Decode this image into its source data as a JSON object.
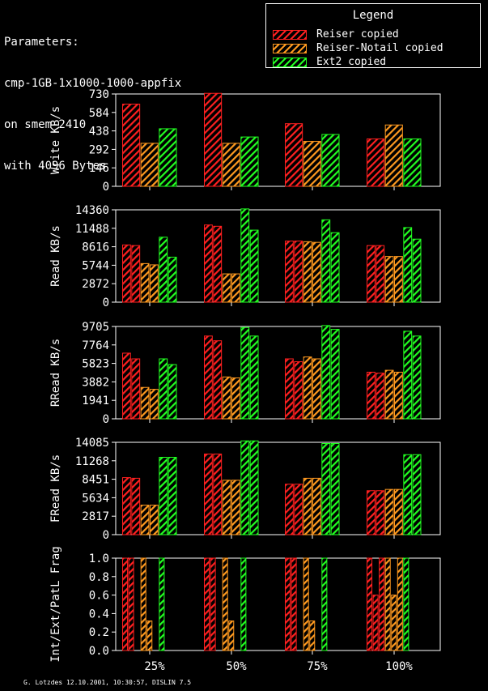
{
  "parameters": {
    "lines": [
      "Parameters:",
      "cmp-1GB-1x1000-1000-appfix",
      "on smem-2410",
      "with 4096 Bytes"
    ]
  },
  "legend": {
    "title": "Legend",
    "items": [
      {
        "label": "Reiser copied",
        "color": "#ff2020"
      },
      {
        "label": "Reiser-Notail copied",
        "color": "#ff9a20"
      },
      {
        "label": "Ext2 copied",
        "color": "#22ff22"
      }
    ]
  },
  "footer": "G. Lotzdes 12.10.2001, 10:30:57, DISLIN 7.5",
  "chart_data": {
    "type": "bar",
    "categories": [
      "25%",
      "50%",
      "75%",
      "100%"
    ],
    "colors": [
      "#ff2020",
      "#ff9a20",
      "#22ff22"
    ],
    "panels": [
      {
        "ylabel": "Write KB/s",
        "ylim": [
          0,
          730
        ],
        "yticks": [
          "0",
          "146",
          "292",
          "438",
          "584",
          "730"
        ],
        "bars_per_series": 1,
        "values": [
          [
            [
              650
            ],
            [
              340
            ],
            [
              455
            ]
          ],
          [
            [
              735
            ],
            [
              340
            ],
            [
              390
            ]
          ],
          [
            [
              495
            ],
            [
              355
            ],
            [
              410
            ]
          ],
          [
            [
              375
            ],
            [
              485
            ],
            [
              375
            ]
          ]
        ]
      },
      {
        "ylabel": "Read KB/s",
        "ylim": [
          0,
          14360
        ],
        "yticks": [
          "0",
          "2872",
          "5744",
          "8616",
          "11488",
          "14360"
        ],
        "bars_per_series": 2,
        "values": [
          [
            [
              8900,
              8800
            ],
            [
              6000,
              5800
            ],
            [
              10100,
              7000
            ]
          ],
          [
            [
              12000,
              11800
            ],
            [
              4400,
              4400
            ],
            [
              14500,
              11200
            ]
          ],
          [
            [
              9500,
              9500
            ],
            [
              9400,
              9300
            ],
            [
              12800,
              10800
            ]
          ],
          [
            [
              8800,
              8800
            ],
            [
              7100,
              7100
            ],
            [
              11600,
              9800
            ]
          ]
        ]
      },
      {
        "ylabel": "RRead KB/s",
        "ylim": [
          0,
          9705
        ],
        "yticks": [
          "0",
          "1941",
          "3882",
          "5823",
          "7764",
          "9705"
        ],
        "bars_per_series": 2,
        "values": [
          [
            [
              6900,
              6300
            ],
            [
              3300,
              3100
            ],
            [
              6300,
              5700
            ]
          ],
          [
            [
              8700,
              8200
            ],
            [
              4400,
              4300
            ],
            [
              9600,
              8700
            ]
          ],
          [
            [
              6300,
              6000
            ],
            [
              6500,
              6300
            ],
            [
              9800,
              9400
            ]
          ],
          [
            [
              4900,
              4800
            ],
            [
              5100,
              4900
            ],
            [
              9200,
              8700
            ]
          ]
        ]
      },
      {
        "ylabel": "FRead KB/s",
        "ylim": [
          0,
          14085
        ],
        "yticks": [
          "0",
          "2817",
          "5634",
          "8451",
          "11268",
          "14085"
        ],
        "bars_per_series": 2,
        "values": [
          [
            [
              8700,
              8600
            ],
            [
              4500,
              4500
            ],
            [
              11800,
              11800
            ]
          ],
          [
            [
              12300,
              12300
            ],
            [
              8300,
              8300
            ],
            [
              14300,
              14300
            ]
          ],
          [
            [
              7700,
              7700
            ],
            [
              8600,
              8600
            ],
            [
              13900,
              13900
            ]
          ],
          [
            [
              6700,
              6700
            ],
            [
              6900,
              6900
            ],
            [
              12200,
              12200
            ]
          ]
        ]
      },
      {
        "ylabel": "Int/Ext/PatL Frag",
        "ylim": [
          0,
          1.0
        ],
        "yticks": [
          "0.0",
          "0.2",
          "0.4",
          "0.6",
          "0.8",
          "1.0"
        ],
        "bars_per_series": 3,
        "values": [
          [
            [
              1.0,
              1.0,
              0.0
            ],
            [
              1.0,
              0.32,
              0.0
            ],
            [
              1.0,
              0.0,
              0.0
            ]
          ],
          [
            [
              1.0,
              1.0,
              0.0
            ],
            [
              1.0,
              0.32,
              0.0
            ],
            [
              1.0,
              0.0,
              0.0
            ]
          ],
          [
            [
              1.0,
              1.0,
              0.0
            ],
            [
              1.0,
              0.32,
              0.0
            ],
            [
              1.0,
              0.0,
              0.0
            ]
          ],
          [
            [
              1.0,
              0.6,
              1.0
            ],
            [
              1.0,
              0.6,
              1.0
            ],
            [
              1.0,
              0.0,
              0.0
            ]
          ]
        ]
      }
    ]
  }
}
